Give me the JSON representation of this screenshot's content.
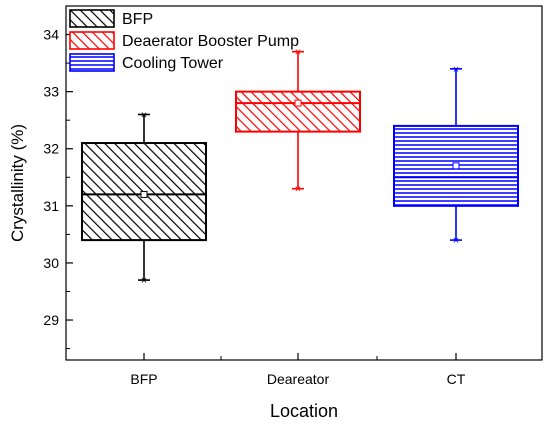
{
  "chart_data": {
    "type": "box",
    "xlabel": "Location",
    "ylabel": "Crystallinity (%)",
    "ylim": [
      28.3,
      34.5
    ],
    "yticks": [
      29,
      30,
      31,
      32,
      33,
      34
    ],
    "categories": [
      "BFP",
      "Deareator",
      "CT"
    ],
    "legend_position": "top-left",
    "series": [
      {
        "name": "BFP",
        "color": "#000000",
        "hatch": "diagonal",
        "min": 29.7,
        "q1": 30.4,
        "median": 31.2,
        "mean": 31.2,
        "q3": 32.1,
        "max": 32.6
      },
      {
        "name": "Deaerator Booster Pump",
        "color": "#ff0000",
        "hatch": "diagonal",
        "min": 31.3,
        "q1": 32.3,
        "median": 32.8,
        "mean": 32.8,
        "q3": 33.0,
        "max": 33.7
      },
      {
        "name": "Cooling Tower",
        "color": "#0000ff",
        "hatch": "horizontal",
        "min": 30.4,
        "q1": 31.0,
        "median": 31.5,
        "mean": 31.7,
        "q3": 32.4,
        "max": 33.4
      }
    ]
  }
}
